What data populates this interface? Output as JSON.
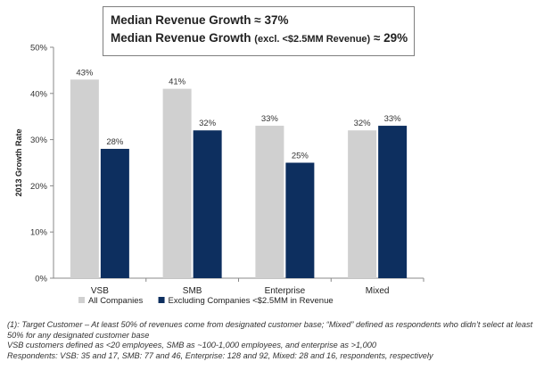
{
  "summary": {
    "line1_text": "Median Revenue Growth",
    "line1_value": "≈ 37%",
    "line2_text": "Median Revenue Growth",
    "line2_note": "(excl. <$2.5MM Revenue)",
    "line2_value": "≈ 29%"
  },
  "chart_data": {
    "type": "bar",
    "categories": [
      "VSB",
      "SMB",
      "Enterprise",
      "Mixed"
    ],
    "series": [
      {
        "name": "All Companies",
        "color": "#d0d0d0",
        "values": [
          43,
          41,
          33,
          32
        ],
        "labels": [
          "43%",
          "41%",
          "33%",
          "32%"
        ]
      },
      {
        "name": "Excluding Companies <$2.5MM in Revenue",
        "color": "#0d2f5f",
        "values": [
          28,
          32,
          25,
          33
        ],
        "labels": [
          "28%",
          "32%",
          "25%",
          "33%"
        ]
      }
    ],
    "ylabel": "2013 Growth Rate",
    "ylim": [
      0,
      50
    ],
    "yticks": [
      0,
      10,
      20,
      30,
      40,
      50
    ],
    "ytick_labels": [
      "0%",
      "10%",
      "20%",
      "30%",
      "40%",
      "50%"
    ],
    "legend_position": "bottom",
    "grid": false
  },
  "footnotes": [
    "(1): Target Customer – At least 50% of revenues come from designated customer base; “Mixed” defined as respondents who didn’t select at least 50% for any designated customer base",
    "VSB customers defined as <20 employees, SMB as ~100-1,000 employees, and enterprise as >1,000",
    "Respondents: VSB: 35 and 17, SMB: 77 and 46, Enterprise: 128 and 92, Mixed: 28 and 16, respondents, respectively"
  ]
}
